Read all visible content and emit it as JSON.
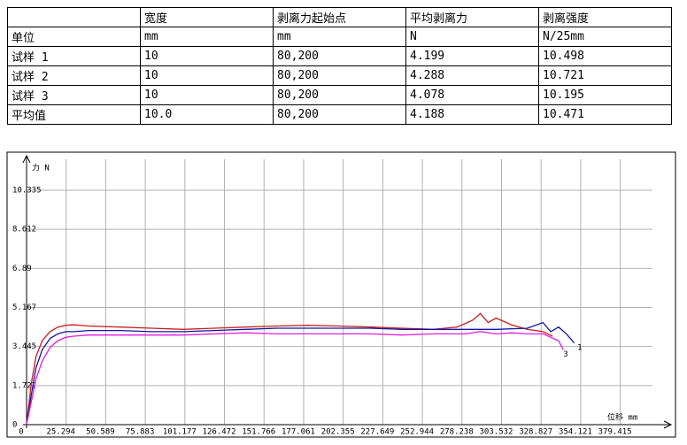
{
  "table": {
    "header": [
      null,
      "宽度",
      "剥离力起始点",
      "平均剥离力",
      "剥离强度"
    ],
    "rows": [
      [
        "单位",
        "mm",
        "mm",
        "N",
        "N/25mm"
      ],
      [
        "试样 1",
        "10",
        "80,200",
        "4.199",
        "10.498"
      ],
      [
        "试样 2",
        "10",
        "80,200",
        "4.288",
        "10.721"
      ],
      [
        "试样 3",
        "10",
        "80,200",
        "4.078",
        "10.195"
      ],
      [
        "平均值",
        "10.0",
        "80,200",
        "4.188",
        "10.471"
      ]
    ]
  },
  "chart_data": {
    "type": "line",
    "y_label": "力 N",
    "x_label": "位移 mm",
    "xlim": [
      0,
      400
    ],
    "xticks": [
      0,
      25.294,
      50.589,
      75.883,
      101.177,
      126.472,
      151.766,
      177.061,
      202.355,
      227.649,
      252.944,
      278.238,
      303.532,
      328.827,
      354.121,
      379.415
    ],
    "ylim": [
      0,
      11.7
    ],
    "yticks": [
      0,
      1.722,
      3.445,
      5.167,
      6.89,
      8.612,
      10.335
    ],
    "grid": true,
    "series": [
      {
        "color": "#c81e1e",
        "x": [
          0,
          3,
          6,
          10,
          15,
          20,
          25,
          30,
          40,
          60,
          80,
          100,
          120,
          140,
          160,
          180,
          200,
          220,
          240,
          260,
          275,
          285,
          290,
          295,
          300,
          310,
          320,
          330,
          336
        ],
        "values": [
          0,
          1.8,
          3.0,
          3.7,
          4.1,
          4.3,
          4.38,
          4.4,
          4.35,
          4.3,
          4.25,
          4.2,
          4.25,
          4.3,
          4.35,
          4.38,
          4.35,
          4.3,
          4.25,
          4.2,
          4.3,
          4.6,
          4.9,
          4.5,
          4.7,
          4.4,
          4.2,
          4.1,
          3.9
        ]
      },
      {
        "color": "#1414a0",
        "x": [
          0,
          3,
          6,
          10,
          15,
          20,
          25,
          30,
          40,
          60,
          80,
          100,
          120,
          140,
          160,
          180,
          200,
          220,
          240,
          260,
          280,
          300,
          320,
          330,
          335,
          340,
          345,
          350
        ],
        "values": [
          0,
          1.3,
          2.5,
          3.3,
          3.8,
          4.0,
          4.1,
          4.1,
          4.15,
          4.15,
          4.1,
          4.1,
          4.15,
          4.2,
          4.25,
          4.25,
          4.25,
          4.25,
          4.2,
          4.2,
          4.2,
          4.2,
          4.25,
          4.5,
          4.1,
          4.3,
          4.0,
          3.6
        ]
      },
      {
        "color": "#e01ee0",
        "x": [
          0,
          3,
          6,
          10,
          15,
          20,
          25,
          30,
          40,
          60,
          80,
          100,
          120,
          140,
          160,
          180,
          200,
          220,
          240,
          260,
          280,
          290,
          300,
          310,
          320,
          330,
          340,
          343
        ],
        "values": [
          0,
          1.0,
          2.0,
          2.8,
          3.4,
          3.7,
          3.85,
          3.9,
          3.95,
          3.95,
          3.95,
          3.95,
          4.0,
          4.05,
          4.0,
          4.0,
          4.0,
          4.0,
          3.95,
          4.0,
          4.0,
          4.1,
          4.0,
          4.05,
          4.0,
          4.0,
          3.7,
          3.3
        ]
      }
    ],
    "annotations": [
      {
        "text": "1",
        "x": 352,
        "y": 3.4,
        "color": "#1414a0"
      },
      {
        "text": "3",
        "x": 343,
        "y": 3.1,
        "color": "#e01ee0"
      }
    ]
  }
}
